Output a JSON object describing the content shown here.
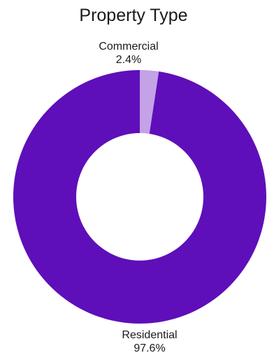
{
  "chart_data": {
    "type": "pie",
    "variant": "donut",
    "title": "Property Type",
    "categories": [
      "Residential",
      "Commercial"
    ],
    "values": [
      97.6,
      2.4
    ],
    "value_labels": [
      "97.6%",
      "2.4%"
    ],
    "colors": [
      "#5e0fb9",
      "#c4a2e6"
    ],
    "legend": "none"
  }
}
